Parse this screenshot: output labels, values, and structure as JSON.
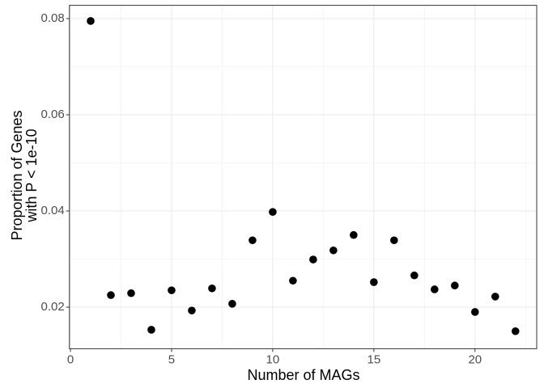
{
  "chart_data": {
    "type": "scatter",
    "x_label": "Number of MAGs",
    "y_label": [
      "Proportion of Genes",
      "with P < 1e-10"
    ],
    "x": [
      1,
      2,
      3,
      4,
      5,
      6,
      7,
      8,
      9,
      10,
      11,
      12,
      13,
      14,
      15,
      16,
      17,
      18,
      19,
      20,
      21,
      22
    ],
    "values": [
      0.0795,
      0.0225,
      0.0229,
      0.0153,
      0.0235,
      0.0193,
      0.0239,
      0.0207,
      0.0339,
      0.0398,
      0.0255,
      0.0299,
      0.0318,
      0.035,
      0.0252,
      0.0339,
      0.0266,
      0.0237,
      0.0245,
      0.019,
      0.0222,
      0.015
    ],
    "color": "#000000",
    "xlim": [
      -0.05,
      23.05
    ],
    "xticks": [
      0,
      5,
      10,
      15,
      20
    ],
    "ylim": [
      0.01136,
      0.08275
    ],
    "yticks": [
      0.02,
      0.04,
      0.06,
      0.08
    ],
    "grid": true
  }
}
